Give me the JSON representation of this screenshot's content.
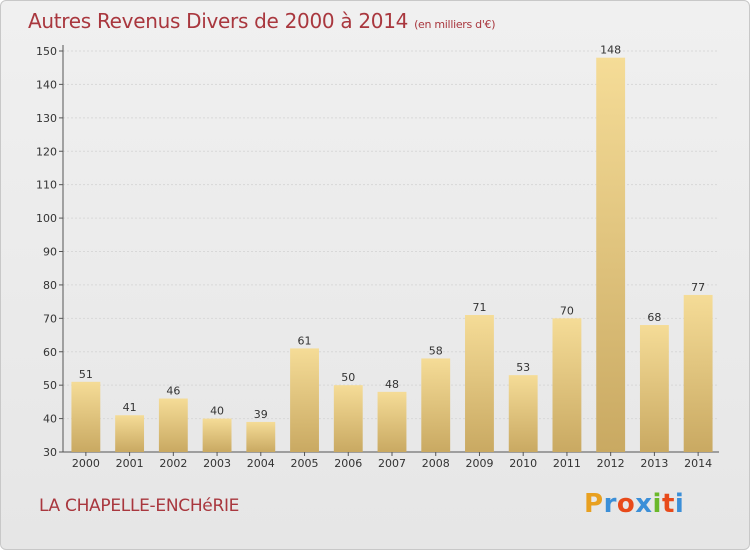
{
  "title": "Autres Revenus Divers de 2000 à 2014",
  "subtitle": "(en milliers d'€)",
  "commune": "LA CHAPELLE-ENCHéRIE",
  "logo": {
    "text": "Proxiti",
    "colors": [
      "#e8a020",
      "#3b8fd8",
      "#e84a1a",
      "#3b8fd8",
      "#6ab82a",
      "#e84a1a",
      "#3b8fd8"
    ]
  },
  "colors": {
    "title": "#a9373e",
    "bar_light": "#f5dc97",
    "bar_dark": "#c9a962",
    "grid": "#d8d8d8"
  },
  "chart_data": {
    "type": "bar",
    "title": "Autres Revenus Divers de 2000 à 2014",
    "subtitle": "(en milliers d'€)",
    "categories": [
      "2000",
      "2001",
      "2002",
      "2003",
      "2004",
      "2005",
      "2006",
      "2007",
      "2008",
      "2009",
      "2010",
      "2011",
      "2012",
      "2013",
      "2014"
    ],
    "values": [
      51,
      41,
      46,
      40,
      39,
      61,
      50,
      48,
      58,
      71,
      53,
      70,
      148,
      68,
      77
    ],
    "ylim": [
      30,
      150
    ],
    "yticks": [
      30,
      40,
      50,
      60,
      70,
      80,
      90,
      100,
      110,
      120,
      130,
      140,
      150
    ],
    "grid": true,
    "data_labels": true
  }
}
